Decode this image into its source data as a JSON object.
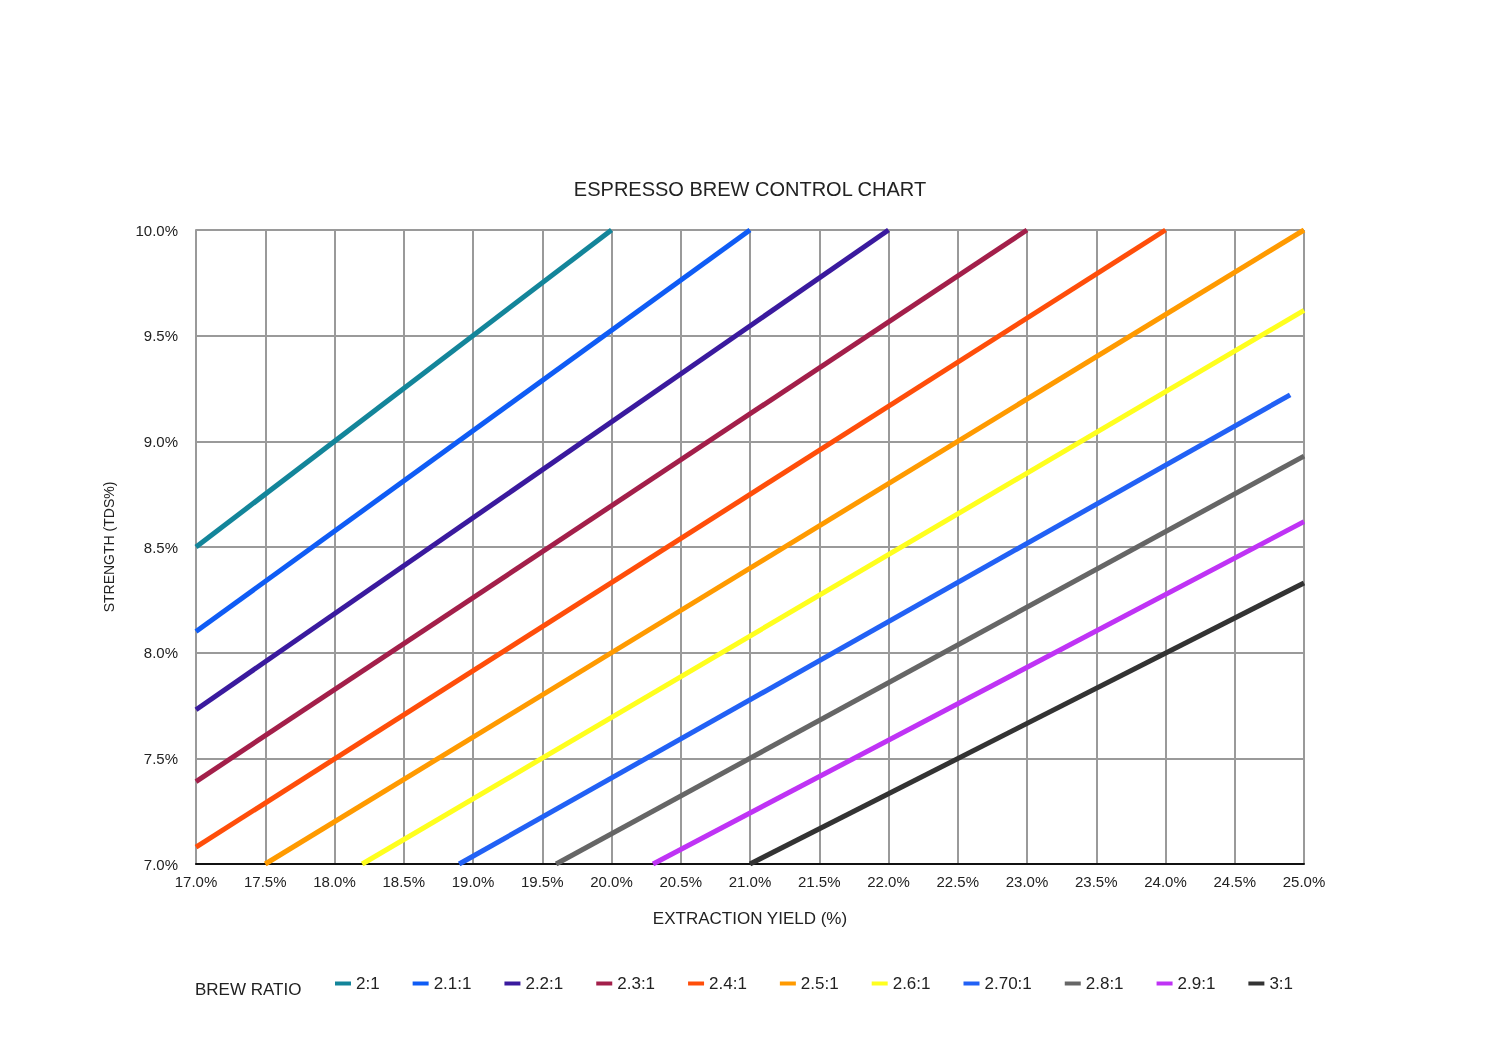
{
  "chart_data": {
    "type": "line",
    "title": "ESPRESSO BREW CONTROL CHART",
    "xlabel": "EXTRACTION YIELD (%)",
    "ylabel": "STRENGTH (TDS%)",
    "legend_title": "BREW RATIO",
    "series": [
      {
        "name": "2:1",
        "color": "#13859a",
        "x": [
          17,
          20
        ],
        "values": [
          8.5,
          10
        ]
      },
      {
        "name": "2.1:1",
        "color": "#0f5cf5",
        "x": [
          17,
          21
        ],
        "values": [
          8.1,
          10
        ]
      },
      {
        "name": "2.2:1",
        "color": "#3a1a9e",
        "x": [
          17,
          22
        ],
        "values": [
          7.73,
          10
        ]
      },
      {
        "name": "2.3:1",
        "color": "#a31f4a",
        "x": [
          17,
          23
        ],
        "values": [
          7.39,
          10
        ]
      },
      {
        "name": "2.4:1",
        "color": "#ff4e0a",
        "x": [
          17,
          24
        ],
        "values": [
          7.08,
          10
        ]
      },
      {
        "name": "2.5:1",
        "color": "#ff9a00",
        "x": [
          17.5,
          25
        ],
        "values": [
          7,
          10
        ]
      },
      {
        "name": "2.6:1",
        "color": "#ffff1e",
        "x": [
          18.2,
          25
        ],
        "values": [
          7,
          9.62
        ]
      },
      {
        "name": "2.70:1",
        "color": "#2261f5",
        "x": [
          18.9,
          24.9
        ],
        "values": [
          7,
          9.22
        ]
      },
      {
        "name": "2.8:1",
        "color": "#666666",
        "x": [
          19.6,
          25
        ],
        "values": [
          7,
          8.93
        ]
      },
      {
        "name": "2.9:1",
        "color": "#bf33f5",
        "x": [
          20.3,
          25
        ],
        "values": [
          7,
          8.62
        ]
      },
      {
        "name": "3:1",
        "color": "#333333",
        "x": [
          21,
          25
        ],
        "values": [
          7,
          8.33
        ]
      }
    ],
    "xlim": [
      17,
      25
    ],
    "xticks": [
      {
        "value": 17,
        "label": "17.0%"
      },
      {
        "value": 17.5,
        "label": "17.5%"
      },
      {
        "value": 18,
        "label": "18.0%"
      },
      {
        "value": 18.5,
        "label": "18.5%"
      },
      {
        "value": 19,
        "label": "19.0%"
      },
      {
        "value": 19.5,
        "label": "19.5%"
      },
      {
        "value": 20,
        "label": "20.0%"
      },
      {
        "value": 20.5,
        "label": "20.5%"
      },
      {
        "value": 21,
        "label": "21.0%"
      },
      {
        "value": 21.5,
        "label": "21.5%"
      },
      {
        "value": 22,
        "label": "22.0%"
      },
      {
        "value": 22.5,
        "label": "22.5%"
      },
      {
        "value": 23,
        "label": "23.0%"
      },
      {
        "value": 23.5,
        "label": "23.5%"
      },
      {
        "value": 24,
        "label": "24.0%"
      },
      {
        "value": 24.5,
        "label": "24.5%"
      },
      {
        "value": 25,
        "label": "25.0%"
      }
    ],
    "ylim": [
      7,
      10
    ],
    "yticks": [
      {
        "value": 7,
        "label": "7.0%"
      },
      {
        "value": 7.5,
        "label": "7.5%"
      },
      {
        "value": 8,
        "label": "8.0%"
      },
      {
        "value": 8.5,
        "label": "8.5%"
      },
      {
        "value": 9,
        "label": "9.0%"
      },
      {
        "value": 9.5,
        "label": "9.5%"
      },
      {
        "value": 10,
        "label": "10.0%"
      }
    ],
    "grid": true,
    "legend": "bottom",
    "marker": "none",
    "line_style": "solid"
  }
}
